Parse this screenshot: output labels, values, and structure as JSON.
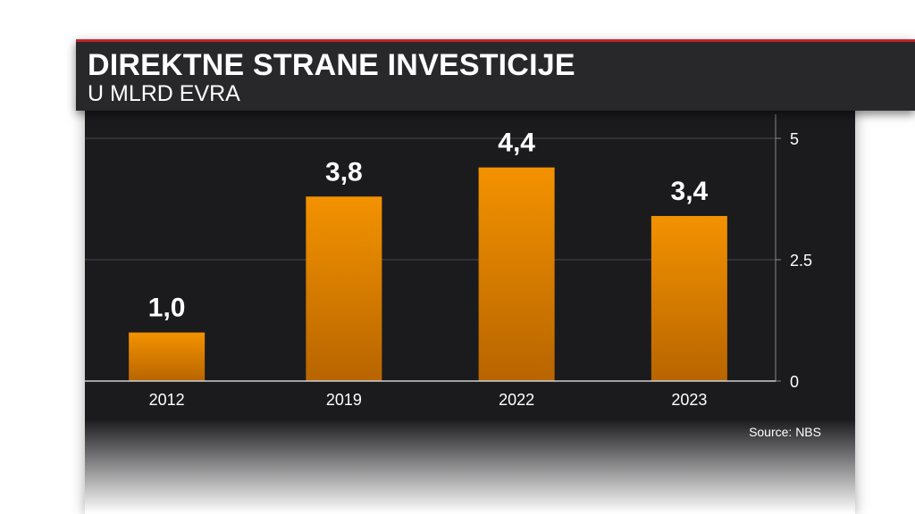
{
  "header": {
    "title": "DIREKTNE STRANE INVESTICIJE",
    "subtitle": "U MLRD EVRA"
  },
  "source": "Source: NBS",
  "colors": {
    "bar_top": "#f39200",
    "bar_bottom": "#b86500",
    "accent_line": "#c0242c",
    "panel": "#1b1b1e"
  },
  "chart_data": {
    "type": "bar",
    "categories": [
      "2012",
      "2019",
      "2022",
      "2023"
    ],
    "values": [
      1.0,
      3.8,
      4.4,
      3.4
    ],
    "value_labels": [
      "1,0",
      "3,8",
      "4,4",
      "3,4"
    ],
    "title": "DIREKTNE STRANE INVESTICIJE",
    "subtitle": "U MLRD EVRA",
    "ylim": [
      0,
      5
    ],
    "yticks": [
      0,
      2.5,
      5
    ],
    "ytick_labels": [
      "0",
      "2.5",
      "5"
    ],
    "y_axis_position": "right",
    "grid": true
  }
}
